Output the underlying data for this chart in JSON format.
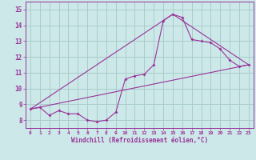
{
  "title": "",
  "xlabel": "Windchill (Refroidissement éolien,°C)",
  "ylabel": "",
  "background_color": "#cce8e8",
  "grid_color": "#aacccc",
  "line_color": "#993399",
  "xlim": [
    -0.5,
    23.5
  ],
  "ylim": [
    7.5,
    15.5
  ],
  "yticks": [
    8,
    9,
    10,
    11,
    12,
    13,
    14,
    15
  ],
  "xticks": [
    0,
    1,
    2,
    3,
    4,
    5,
    6,
    7,
    8,
    9,
    10,
    11,
    12,
    13,
    14,
    15,
    16,
    17,
    18,
    19,
    20,
    21,
    22,
    23
  ],
  "series1_x": [
    0,
    1,
    2,
    3,
    4,
    5,
    6,
    7,
    8,
    9,
    10,
    11,
    12,
    13,
    14,
    15,
    16,
    17,
    18,
    19,
    20,
    21,
    22,
    23
  ],
  "series1_y": [
    8.7,
    8.8,
    8.3,
    8.6,
    8.4,
    8.4,
    8.0,
    7.9,
    8.0,
    8.5,
    10.6,
    10.8,
    10.9,
    11.5,
    14.3,
    14.7,
    14.5,
    13.1,
    13.0,
    12.9,
    12.5,
    11.8,
    11.4,
    11.5
  ],
  "series3_x": [
    0,
    23
  ],
  "series3_y": [
    8.7,
    11.5
  ],
  "series4_x": [
    0,
    15,
    23
  ],
  "series4_y": [
    8.7,
    14.7,
    11.5
  ]
}
